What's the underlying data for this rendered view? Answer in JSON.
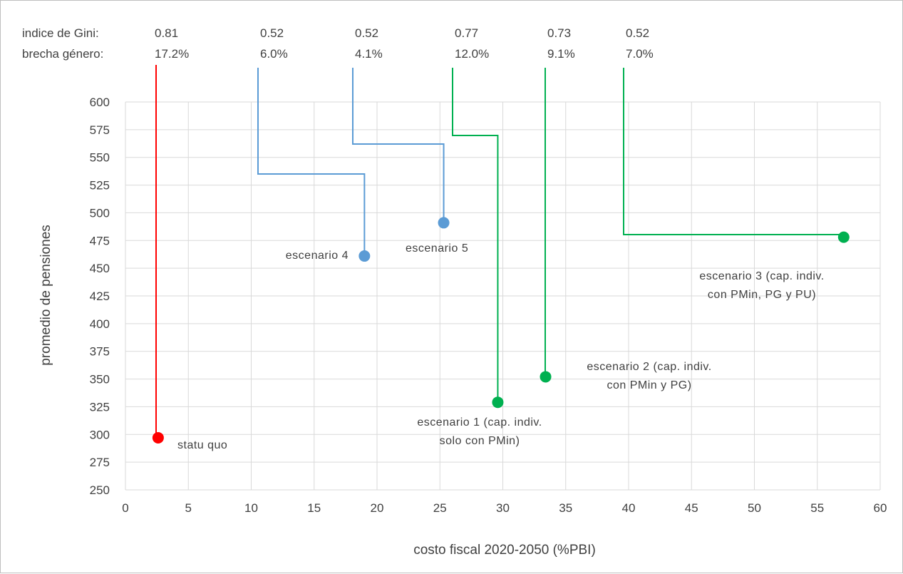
{
  "chart_data": {
    "type": "scatter",
    "xlabel": "costo fiscal 2020-2050 (%PBI)",
    "ylabel": "promedio de pensiones",
    "xlim": [
      0,
      60
    ],
    "ylim": [
      250,
      600
    ],
    "x_ticks": [
      0,
      5,
      10,
      15,
      20,
      25,
      30,
      35,
      40,
      45,
      50,
      55,
      60
    ],
    "y_ticks": [
      250,
      275,
      300,
      325,
      350,
      375,
      400,
      425,
      450,
      475,
      500,
      525,
      550,
      575,
      600
    ],
    "grid": true,
    "header_labels": {
      "gini": "indice de Gini:",
      "gap": "brecha género:"
    },
    "points": [
      {
        "name": "statu quo",
        "label_lines": [
          "statu quo"
        ],
        "x": 2.6,
        "y": 297,
        "color": "#ff0000",
        "gini": "0.81",
        "gap": "17.2%"
      },
      {
        "name": "escenario 4",
        "label_lines": [
          "escenario 4"
        ],
        "x": 19.0,
        "y": 461,
        "color": "#5b9bd5",
        "gini": "0.52",
        "gap": "6.0%"
      },
      {
        "name": "escenario 5",
        "label_lines": [
          "escenario 5"
        ],
        "x": 25.3,
        "y": 491,
        "color": "#5b9bd5",
        "gini": "0.52",
        "gap": "4.1%"
      },
      {
        "name": "escenario 1",
        "label_lines": [
          "escenario 1 (cap. indiv.",
          "solo con PMin)"
        ],
        "x": 29.6,
        "y": 329,
        "color": "#00b050",
        "gini": "0.77",
        "gap": "12.0%"
      },
      {
        "name": "escenario 2",
        "label_lines": [
          "escenario 2 (cap. indiv.",
          "con PMin y PG)"
        ],
        "x": 33.4,
        "y": 352,
        "color": "#00b050",
        "gini": "0.73",
        "gap": "9.1%"
      },
      {
        "name": "escenario 3",
        "label_lines": [
          "escenario 3 (cap. indiv.",
          "con PMin, PG y PU)"
        ],
        "x": 57.1,
        "y": 478,
        "color": "#00b050",
        "gini": "0.52",
        "gap": "7.0%"
      }
    ]
  }
}
